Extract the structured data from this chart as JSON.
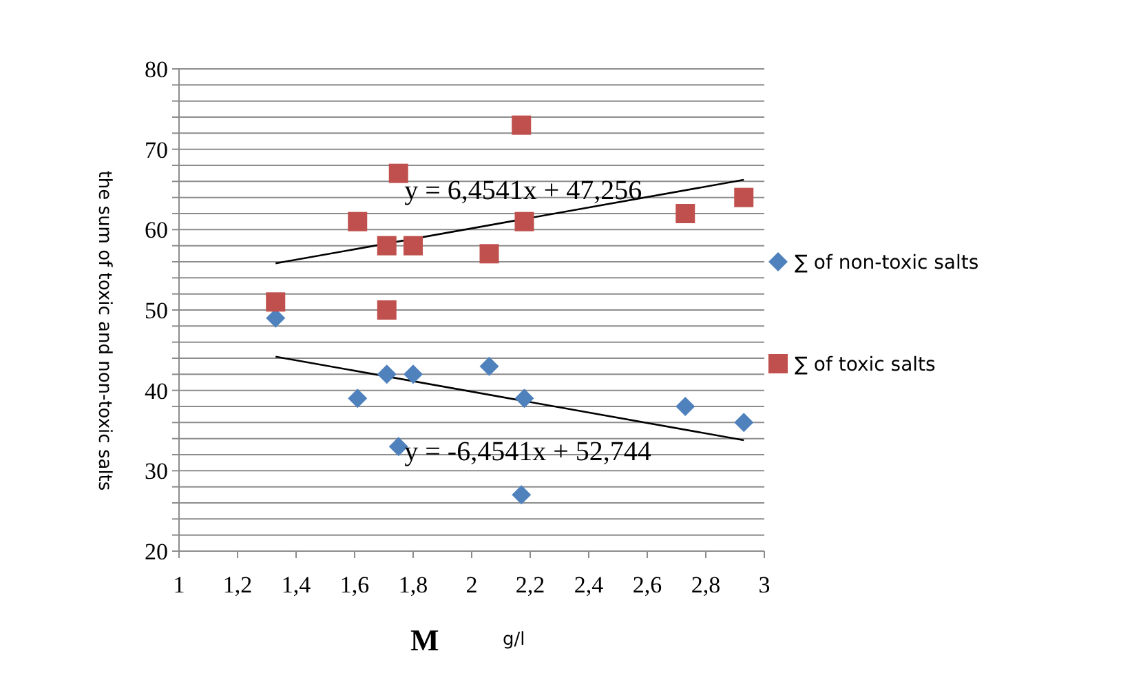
{
  "chart_data": {
    "type": "scatter",
    "xlabel": "M",
    "ylabel": "the sum of toxic and non-toxic salts",
    "annotations": [
      "g/l",
      {
        "text": "y = 6,4541x + 47,256",
        "x": 1.77,
        "y": 65
      },
      {
        "text": "y = -6,4541x + 52,744",
        "x": 1.77,
        "y": 32.5
      }
    ],
    "xlim": [
      1,
      3
    ],
    "ylim": [
      20,
      80
    ],
    "xticks": [
      1,
      {
        "value": 1.2,
        "label": "1,2"
      },
      {
        "value": 1.4,
        "label": "1,4"
      },
      {
        "value": 1.6,
        "label": "1,6"
      },
      {
        "value": 1.8,
        "label": "1,8"
      },
      2,
      {
        "value": 2.2,
        "label": "2,2"
      },
      {
        "value": 2.4,
        "label": "2,4"
      },
      {
        "value": 2.6,
        "label": "2,6"
      },
      {
        "value": 2.8,
        "label": "2,8"
      },
      3
    ],
    "yticks": [
      20,
      {
        "value": 22,
        "label": null
      },
      {
        "value": 24,
        "label": null
      },
      {
        "value": 26,
        "label": null
      },
      {
        "value": 28,
        "label": null
      },
      30,
      {
        "value": 32,
        "label": null
      },
      {
        "value": 34,
        "label": null
      },
      {
        "value": 36,
        "label": null
      },
      {
        "value": 38,
        "label": null
      },
      40,
      {
        "value": 42,
        "label": null
      },
      {
        "value": 44,
        "label": null
      },
      {
        "value": 46,
        "label": null
      },
      {
        "value": 48,
        "label": null
      },
      50,
      {
        "value": 52,
        "label": null
      },
      {
        "value": 54,
        "label": null
      },
      {
        "value": 56,
        "label": null
      },
      {
        "value": 58,
        "label": null
      },
      60,
      {
        "value": 62,
        "label": null
      },
      {
        "value": 64,
        "label": null
      },
      {
        "value": 66,
        "label": null
      },
      {
        "value": 68,
        "label": null
      },
      70,
      {
        "value": 72,
        "label": null
      },
      {
        "value": 74,
        "label": null
      },
      {
        "value": 76,
        "label": null
      },
      {
        "value": 78,
        "label": null
      },
      80
    ],
    "grid": "y",
    "legend": "right",
    "series": [
      {
        "name": "∑  of non-toxic salts",
        "color": "#4f81bd",
        "marker": "diamond",
        "x": [
          1.33,
          1.61,
          1.71,
          1.75,
          1.8,
          2.06,
          2.17,
          2.18,
          2.73,
          2.93
        ],
        "values": [
          49,
          39,
          42,
          33,
          42,
          43,
          27,
          39,
          38,
          36
        ]
      },
      {
        "name": "∑  of toxic salts",
        "color": "#c0504d",
        "marker": "square",
        "x": [
          1.33,
          1.61,
          1.71,
          1.71,
          1.75,
          1.8,
          2.06,
          2.17,
          2.18,
          2.73,
          2.93
        ],
        "values": [
          51,
          61,
          58,
          50,
          67,
          58,
          57,
          73,
          61,
          62,
          64
        ]
      },
      {
        "type": "line",
        "color": "#000000",
        "x": [
          1.33,
          2.93
        ],
        "values": [
          55.8,
          66.2
        ]
      },
      {
        "type": "line",
        "color": "#000000",
        "x": [
          1.33,
          2.93
        ],
        "values": [
          44.2,
          33.8
        ]
      }
    ]
  }
}
